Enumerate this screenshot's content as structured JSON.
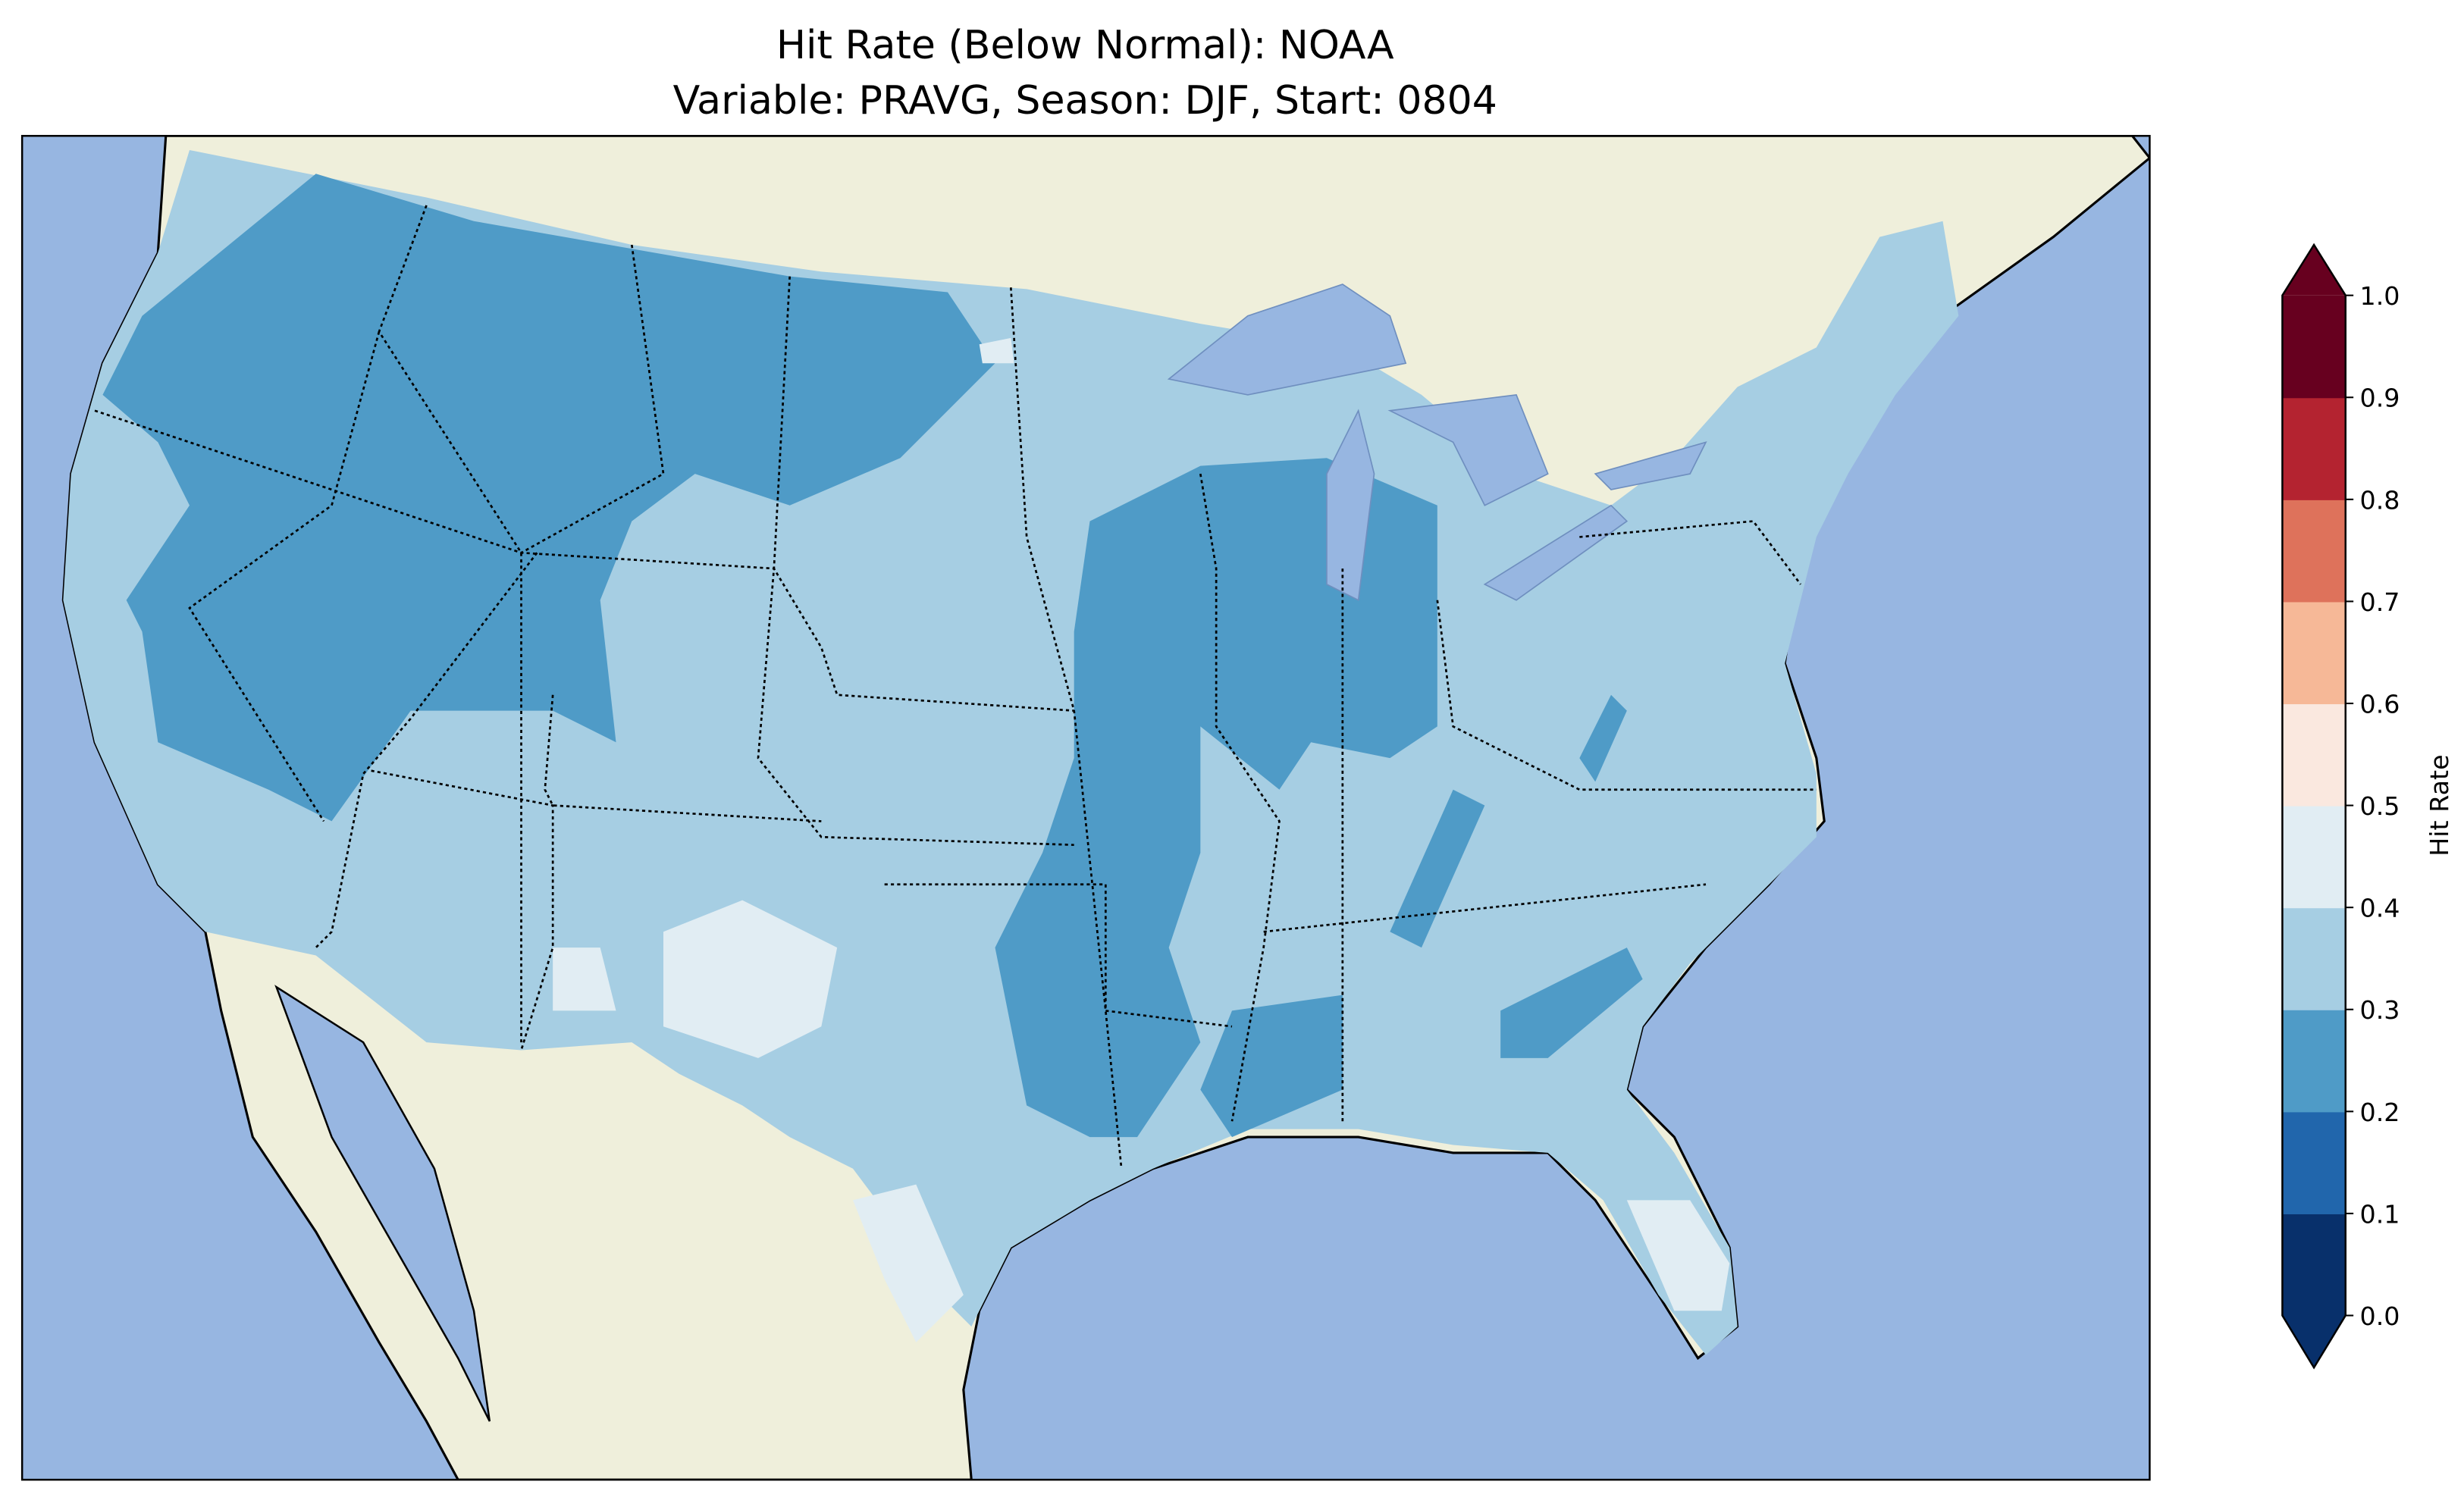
{
  "chart_data": {
    "type": "heatmap",
    "title_line1": "Hit Rate (Below Normal): NOAA",
    "title_line2": "Variable: PRAVG, Season: DJF, Start: 0804",
    "colorbar": {
      "label": "Hit Rate",
      "range": [
        0.0,
        1.0
      ],
      "extend": "both",
      "ticks": [
        "0.0",
        "0.1",
        "0.2",
        "0.3",
        "0.4",
        "0.5",
        "0.6",
        "0.7",
        "0.8",
        "0.9",
        "1.0"
      ],
      "bin_colors": [
        "#08306b",
        "#2166ac",
        "#4f9bc7",
        "#a6cee3",
        "#e1edf3",
        "#fae8df",
        "#f6b897",
        "#de725b",
        "#b42330",
        "#67001f"
      ]
    },
    "map_colors": {
      "ocean": "#97b6e1",
      "land": "#efefdb",
      "hit_0_2_to_0_3": "#4f9bc7",
      "hit_0_3_to_0_4": "#a6cee3",
      "hit_0_4_to_0_5": "#e1edf3"
    }
  }
}
